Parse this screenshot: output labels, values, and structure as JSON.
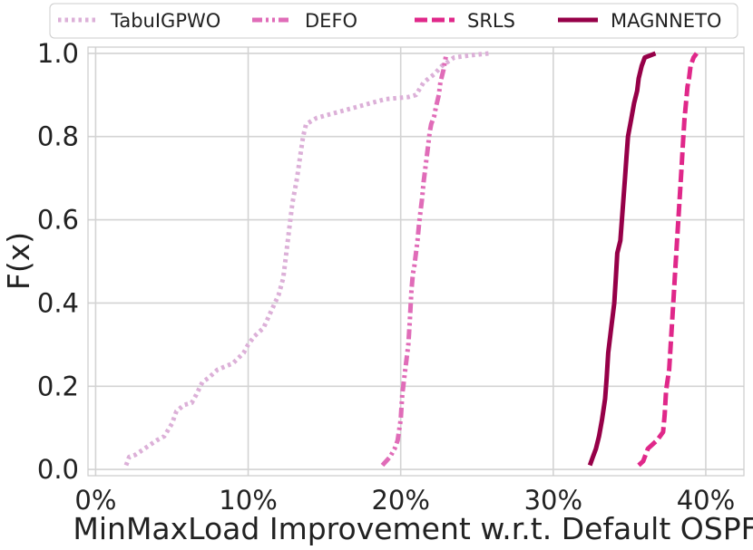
{
  "chart_data": {
    "type": "line",
    "title": "",
    "xlabel": "MinMaxLoad Improvement w.r.t. Default OSPF",
    "ylabel": "F(x)",
    "xlim": [
      -0.5,
      42.5
    ],
    "ylim": [
      -0.015,
      1.015
    ],
    "grid": true,
    "legend_position": "top",
    "x_ticks": [
      0,
      10,
      20,
      30,
      40
    ],
    "x_tick_labels": [
      "0%",
      "10%",
      "20%",
      "30%",
      "40%"
    ],
    "y_ticks": [
      0.0,
      0.2,
      0.4,
      0.6,
      0.8,
      1.0
    ],
    "y_tick_labels": [
      "0.0",
      "0.2",
      "0.4",
      "0.6",
      "0.8",
      "1.0"
    ],
    "series": [
      {
        "name": "TabuIGPWO",
        "color": "#dcb0d8",
        "dash": "dotted",
        "points": [
          [
            2.0,
            0.01
          ],
          [
            2.2,
            0.03
          ],
          [
            2.6,
            0.035
          ],
          [
            3.2,
            0.05
          ],
          [
            4.0,
            0.07
          ],
          [
            4.5,
            0.08
          ],
          [
            5.0,
            0.11
          ],
          [
            5.3,
            0.14
          ],
          [
            5.8,
            0.155
          ],
          [
            6.3,
            0.16
          ],
          [
            6.6,
            0.18
          ],
          [
            7.0,
            0.21
          ],
          [
            7.4,
            0.22
          ],
          [
            8.0,
            0.24
          ],
          [
            9.0,
            0.255
          ],
          [
            9.7,
            0.28
          ],
          [
            10.0,
            0.3
          ],
          [
            10.4,
            0.32
          ],
          [
            11.0,
            0.34
          ],
          [
            11.5,
            0.38
          ],
          [
            12.0,
            0.42
          ],
          [
            12.3,
            0.46
          ],
          [
            12.5,
            0.52
          ],
          [
            12.7,
            0.58
          ],
          [
            12.9,
            0.64
          ],
          [
            13.2,
            0.7
          ],
          [
            13.4,
            0.75
          ],
          [
            13.6,
            0.8
          ],
          [
            13.8,
            0.83
          ],
          [
            14.5,
            0.845
          ],
          [
            17.0,
            0.87
          ],
          [
            19.0,
            0.89
          ],
          [
            20.5,
            0.895
          ],
          [
            21.0,
            0.9
          ],
          [
            21.5,
            0.93
          ],
          [
            22.2,
            0.95
          ],
          [
            22.7,
            0.97
          ],
          [
            23.5,
            0.99
          ],
          [
            24.5,
            0.995
          ],
          [
            25.8,
            1.0
          ]
        ]
      },
      {
        "name": "DEFO",
        "color": "#e06cb8",
        "dash": "dashdot",
        "points": [
          [
            18.8,
            0.01
          ],
          [
            19.3,
            0.03
          ],
          [
            19.6,
            0.05
          ],
          [
            19.8,
            0.07
          ],
          [
            20.0,
            0.12
          ],
          [
            20.1,
            0.18
          ],
          [
            20.3,
            0.24
          ],
          [
            20.5,
            0.3
          ],
          [
            20.6,
            0.36
          ],
          [
            20.7,
            0.43
          ],
          [
            20.8,
            0.47
          ],
          [
            20.9,
            0.49
          ],
          [
            21.0,
            0.52
          ],
          [
            21.1,
            0.55
          ],
          [
            21.2,
            0.59
          ],
          [
            21.3,
            0.62
          ],
          [
            21.4,
            0.65
          ],
          [
            21.5,
            0.69
          ],
          [
            21.6,
            0.72
          ],
          [
            21.7,
            0.75
          ],
          [
            21.8,
            0.78
          ],
          [
            21.9,
            0.81
          ],
          [
            22.0,
            0.83
          ],
          [
            22.2,
            0.85
          ],
          [
            22.3,
            0.87
          ],
          [
            22.5,
            0.9
          ],
          [
            22.6,
            0.93
          ],
          [
            22.8,
            0.96
          ],
          [
            22.9,
            0.98
          ],
          [
            23.0,
            1.0
          ]
        ]
      },
      {
        "name": "SRLS",
        "color": "#e0288a",
        "dash": "dashed",
        "points": [
          [
            35.6,
            0.01
          ],
          [
            35.9,
            0.02
          ],
          [
            36.2,
            0.05
          ],
          [
            36.8,
            0.07
          ],
          [
            37.2,
            0.09
          ],
          [
            37.3,
            0.13
          ],
          [
            37.4,
            0.19
          ],
          [
            37.6,
            0.24
          ],
          [
            37.7,
            0.3
          ],
          [
            37.8,
            0.36
          ],
          [
            37.9,
            0.42
          ],
          [
            38.0,
            0.48
          ],
          [
            38.1,
            0.54
          ],
          [
            38.2,
            0.6
          ],
          [
            38.3,
            0.66
          ],
          [
            38.4,
            0.72
          ],
          [
            38.5,
            0.78
          ],
          [
            38.6,
            0.84
          ],
          [
            38.7,
            0.88
          ],
          [
            38.8,
            0.92
          ],
          [
            38.9,
            0.94
          ],
          [
            39.0,
            0.97
          ],
          [
            39.2,
            0.99
          ],
          [
            39.4,
            1.0
          ]
        ]
      },
      {
        "name": "MAGNNETO",
        "color": "#960048",
        "dash": "solid",
        "points": [
          [
            32.4,
            0.01
          ],
          [
            32.6,
            0.03
          ],
          [
            32.8,
            0.05
          ],
          [
            33.0,
            0.08
          ],
          [
            33.2,
            0.12
          ],
          [
            33.4,
            0.17
          ],
          [
            33.5,
            0.22
          ],
          [
            33.6,
            0.28
          ],
          [
            33.8,
            0.34
          ],
          [
            34.0,
            0.4
          ],
          [
            34.1,
            0.46
          ],
          [
            34.2,
            0.52
          ],
          [
            34.4,
            0.55
          ],
          [
            34.5,
            0.6
          ],
          [
            34.6,
            0.65
          ],
          [
            34.7,
            0.7
          ],
          [
            34.8,
            0.75
          ],
          [
            34.9,
            0.8
          ],
          [
            35.1,
            0.84
          ],
          [
            35.3,
            0.88
          ],
          [
            35.5,
            0.91
          ],
          [
            35.6,
            0.94
          ],
          [
            35.8,
            0.97
          ],
          [
            36.0,
            0.99
          ],
          [
            36.7,
            1.0
          ]
        ]
      }
    ]
  }
}
